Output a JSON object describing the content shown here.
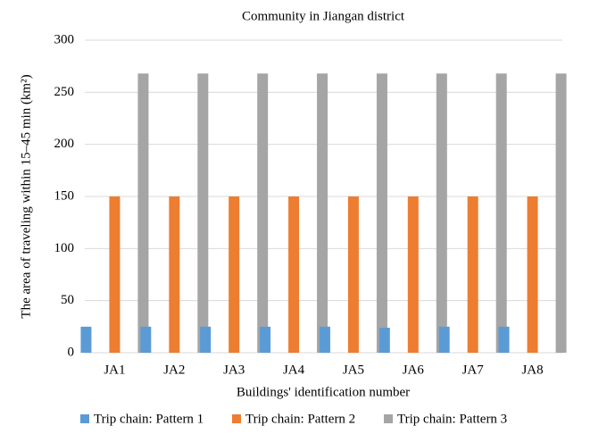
{
  "chart_data": {
    "type": "bar",
    "title": "Community in Jiangan district",
    "x_label": "Buildings' identification number",
    "y_label": "The area of traveling within 15–45 min (km²)",
    "categories": [
      "JA1",
      "JA2",
      "JA3",
      "JA4",
      "JA5",
      "JA6",
      "JA7",
      "JA8"
    ],
    "series": [
      {
        "name": "Trip chain: Pattern 1",
        "color": "#5b9bd5",
        "values": [
          25,
          25,
          25,
          25,
          25,
          24,
          25,
          25
        ]
      },
      {
        "name": "Trip chain: Pattern 2",
        "color": "#ed7d31",
        "values": [
          150,
          150,
          150,
          150,
          150,
          150,
          150,
          150
        ]
      },
      {
        "name": "Trip chain: Pattern 3",
        "color": "#a5a5a5",
        "values": [
          268,
          268,
          268,
          268,
          268,
          268,
          268,
          268
        ]
      }
    ],
    "ylim": [
      0,
      300
    ],
    "yticks": [
      0,
      50,
      100,
      150,
      200,
      250,
      300
    ],
    "grid": true,
    "legend": "bottom"
  }
}
